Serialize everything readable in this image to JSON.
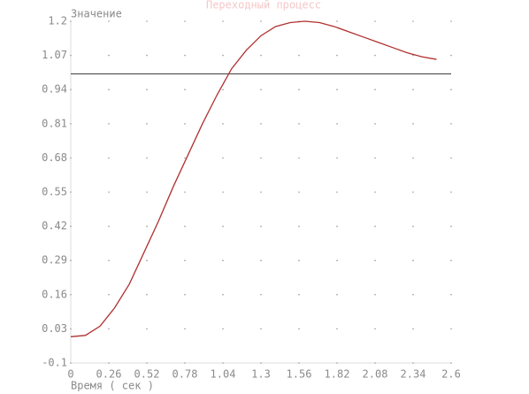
{
  "chart_data": {
    "type": "line",
    "title": "Переходный процесс",
    "ylabel": "Значение",
    "xlabel": "Время ( сек )",
    "x": [
      0,
      0.1,
      0.2,
      0.3,
      0.4,
      0.5,
      0.6,
      0.7,
      0.8,
      0.9,
      1.0,
      1.1,
      1.2,
      1.3,
      1.4,
      1.5,
      1.6,
      1.7,
      1.8,
      1.9,
      2.0,
      2.1,
      2.2,
      2.3,
      2.4,
      2.5
    ],
    "series": [
      {
        "color": "#b03030",
        "values": [
          0,
          0.005,
          0.04,
          0.11,
          0.2,
          0.32,
          0.44,
          0.57,
          0.69,
          0.81,
          0.92,
          1.02,
          1.09,
          1.145,
          1.18,
          1.195,
          1.2,
          1.195,
          1.18,
          1.16,
          1.14,
          1.12,
          1.1,
          1.08,
          1.065,
          1.055
        ]
      }
    ],
    "reference_line": 1,
    "xlim": [
      0,
      2.6
    ],
    "xticks": [
      0,
      0.26,
      0.52,
      0.78,
      1.04,
      1.3,
      1.56,
      1.82,
      2.08,
      2.34,
      2.6
    ],
    "ylim": [
      -0.1,
      1.2
    ],
    "yticks": [
      -0.1,
      0.03,
      0.16,
      0.29,
      0.42,
      0.55,
      0.68,
      0.81,
      0.94,
      1.07,
      1.2
    ],
    "grid": "dots"
  }
}
